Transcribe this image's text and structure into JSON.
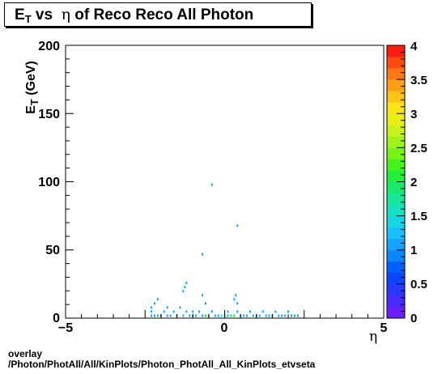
{
  "title": {
    "main": "E",
    "sub": "T",
    "rest_a": " vs  ",
    "eta": "η",
    "rest_b": " of Reco Reco All Photon"
  },
  "axes": {
    "ylabel_main": "E",
    "ylabel_sub": "T",
    "ylabel_unit": " (GeV)",
    "xlabel": "η"
  },
  "footer": {
    "line1": "overlay",
    "line2": "/Photon/PhotAll/All/KinPlots/Photon_PhotAll_All_KinPlots_etvseta"
  },
  "chart_data": {
    "type": "heatmap",
    "xlim": [
      -5,
      5
    ],
    "ylim": [
      0,
      200
    ],
    "zlim": [
      0,
      4
    ],
    "x_ticks": [
      -5,
      0,
      5
    ],
    "y_ticks": [
      0,
      50,
      100,
      150,
      200
    ],
    "z_ticks": [
      0,
      0.5,
      1,
      1.5,
      2,
      2.5,
      3,
      3.5,
      4
    ],
    "x_tick_labels": [
      "−5",
      "0",
      "5"
    ],
    "y_tick_labels": [
      "0",
      "50",
      "100",
      "150",
      "200"
    ],
    "z_tick_labels": [
      "0",
      "0.5",
      "1",
      "1.5",
      "2",
      "2.5",
      "3",
      "3.5",
      "4"
    ],
    "palette": [
      "#6b1fff",
      "#4a2bff",
      "#2838ff",
      "#0a46ff",
      "#0060ff",
      "#0a86ff",
      "#14a4ff",
      "#18c0ff",
      "#16d6e4",
      "#16e0c0",
      "#18e698",
      "#18ea6e",
      "#22ef3a",
      "#46f21e",
      "#76f41a",
      "#a0f31a",
      "#c8f21a",
      "#e8ee16",
      "#ffe41a",
      "#ffc418",
      "#ff9f18",
      "#ff7818",
      "#ff4a14",
      "#ff1e10"
    ],
    "bins": [
      {
        "x": -2.3,
        "y": 1.5,
        "z": 1
      },
      {
        "x": -2.3,
        "y": 4.5,
        "z": 1
      },
      {
        "x": -2.3,
        "y": 7.5,
        "z": 1
      },
      {
        "x": -2.2,
        "y": 10.5,
        "z": 1
      },
      {
        "x": -2.1,
        "y": 13.5,
        "z": 1
      },
      {
        "x": -2.2,
        "y": 1.5,
        "z": 1
      },
      {
        "x": -2.1,
        "y": 1.5,
        "z": 1
      },
      {
        "x": -2.0,
        "y": 1.5,
        "z": 1
      },
      {
        "x": -1.9,
        "y": 4.5,
        "z": 1
      },
      {
        "x": -1.8,
        "y": 7.5,
        "z": 1
      },
      {
        "x": -1.8,
        "y": 1.5,
        "z": 1
      },
      {
        "x": -1.7,
        "y": 1.5,
        "z": 1
      },
      {
        "x": -1.6,
        "y": 4.5,
        "z": 1
      },
      {
        "x": -1.5,
        "y": 1.5,
        "z": 1
      },
      {
        "x": -1.4,
        "y": 7.5,
        "z": 1
      },
      {
        "x": -1.3,
        "y": 1.5,
        "z": 1
      },
      {
        "x": -1.2,
        "y": 4.5,
        "z": 1
      },
      {
        "x": -1.1,
        "y": 1.5,
        "z": 1
      },
      {
        "x": -1.0,
        "y": 1.5,
        "z": 1
      },
      {
        "x": -1.0,
        "y": 4.5,
        "z": 1
      },
      {
        "x": -0.9,
        "y": 1.5,
        "z": 1
      },
      {
        "x": -0.8,
        "y": 4.5,
        "z": 1
      },
      {
        "x": -0.7,
        "y": 1.5,
        "z": 1
      },
      {
        "x": -0.6,
        "y": 1.5,
        "z": 1.5
      },
      {
        "x": -0.5,
        "y": 1.5,
        "z": 1
      },
      {
        "x": -0.4,
        "y": 4.5,
        "z": 1
      },
      {
        "x": -0.3,
        "y": 1.5,
        "z": 1
      },
      {
        "x": -0.2,
        "y": 1.5,
        "z": 1
      },
      {
        "x": -0.1,
        "y": 1.5,
        "z": 1.5
      },
      {
        "x": 0.0,
        "y": 1.5,
        "z": 1
      },
      {
        "x": 0.1,
        "y": 1.5,
        "z": 1
      },
      {
        "x": 0.1,
        "y": 4.5,
        "z": 1
      },
      {
        "x": 0.2,
        "y": 1.5,
        "z": 1.5
      },
      {
        "x": 0.3,
        "y": 1.5,
        "z": 1
      },
      {
        "x": 0.4,
        "y": 4.5,
        "z": 1
      },
      {
        "x": 0.5,
        "y": 1.5,
        "z": 1
      },
      {
        "x": 0.6,
        "y": 1.5,
        "z": 1
      },
      {
        "x": 0.7,
        "y": 1.5,
        "z": 1
      },
      {
        "x": 0.8,
        "y": 4.5,
        "z": 1
      },
      {
        "x": 0.9,
        "y": 1.5,
        "z": 1
      },
      {
        "x": 1.0,
        "y": 1.5,
        "z": 1
      },
      {
        "x": 1.1,
        "y": 1.5,
        "z": 1
      },
      {
        "x": 1.2,
        "y": 4.5,
        "z": 1
      },
      {
        "x": 1.3,
        "y": 1.5,
        "z": 1
      },
      {
        "x": 1.4,
        "y": 1.5,
        "z": 1
      },
      {
        "x": 1.5,
        "y": 1.5,
        "z": 1
      },
      {
        "x": 1.6,
        "y": 4.5,
        "z": 1
      },
      {
        "x": 1.7,
        "y": 1.5,
        "z": 1
      },
      {
        "x": 1.8,
        "y": 1.5,
        "z": 1
      },
      {
        "x": 1.9,
        "y": 1.5,
        "z": 1
      },
      {
        "x": 2.0,
        "y": 4.5,
        "z": 1
      },
      {
        "x": 2.1,
        "y": 1.5,
        "z": 1
      },
      {
        "x": 2.2,
        "y": 1.5,
        "z": 1
      },
      {
        "x": 2.3,
        "y": 1.5,
        "z": 1
      },
      {
        "x": -0.6,
        "y": 1.5,
        "z": 2
      },
      {
        "x": -0.5,
        "y": 1.5,
        "z": 2
      },
      {
        "x": 0.2,
        "y": 1.5,
        "z": 2
      },
      {
        "x": 0.3,
        "y": 1.5,
        "z": 2
      },
      {
        "x": 0.4,
        "y": 10.5,
        "z": 1
      },
      {
        "x": 0.3,
        "y": 13.5,
        "z": 1
      },
      {
        "x": 0.35,
        "y": 16.5,
        "z": 1
      },
      {
        "x": -1.3,
        "y": 19.5,
        "z": 1
      },
      {
        "x": -1.25,
        "y": 22.5,
        "z": 1
      },
      {
        "x": -1.2,
        "y": 25.5,
        "z": 1
      },
      {
        "x": -0.7,
        "y": 16.5,
        "z": 1
      },
      {
        "x": -0.6,
        "y": 10.5,
        "z": 1
      },
      {
        "x": -0.4,
        "y": 97.5,
        "z": 1
      },
      {
        "x": -0.7,
        "y": 46.5,
        "z": 1
      },
      {
        "x": 0.4,
        "y": 67.5,
        "z": 1
      }
    ]
  }
}
